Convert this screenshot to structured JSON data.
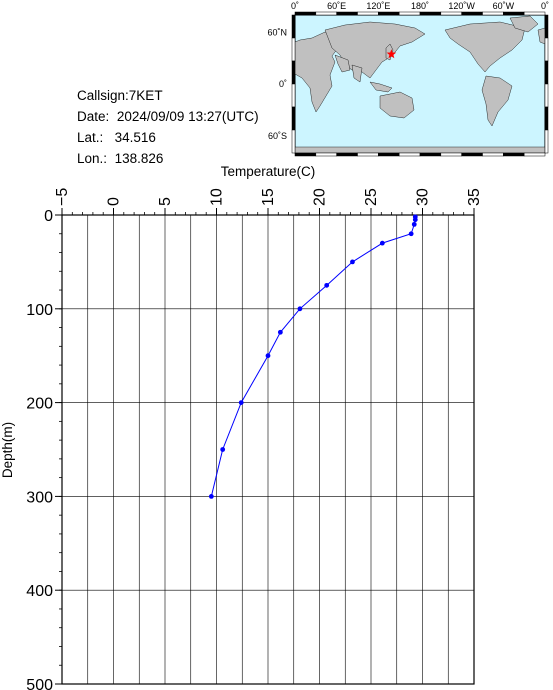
{
  "station": {
    "callsign_label": "Callsign:",
    "callsign": "7KET",
    "date_label": "Date:",
    "date": "2024/09/09 13:27(UTC)",
    "lat_label": "Lat.:",
    "lat": "34.516",
    "lon_label": "Lon.:",
    "lon": "138.826"
  },
  "map": {
    "top_labels": [
      "0˚",
      "60˚E",
      "120˚E",
      "180˚",
      "120˚W",
      "60˚W",
      "0˚"
    ],
    "right_labels": [
      "60˚N",
      "0˚",
      "60˚S"
    ],
    "ocean_color": "#ccf5ff",
    "land_color": "#c0c0c0",
    "marker_color": "#ff0000",
    "marker": {
      "lon": 138.826,
      "lat": 34.516
    }
  },
  "chart_data": {
    "type": "line",
    "xlabel": "Temperature(C)",
    "ylabel": "Depth(m)",
    "xlim": [
      -5,
      35
    ],
    "ylim": [
      0,
      500
    ],
    "y_inverted": true,
    "x_axis_position": "top",
    "x_ticks": [
      "−5",
      "0",
      "5",
      "10",
      "15",
      "20",
      "25",
      "30",
      "35"
    ],
    "x_tick_values": [
      -5,
      0,
      5,
      10,
      15,
      20,
      25,
      30,
      35
    ],
    "y_ticks": [
      "0",
      "100",
      "200",
      "300",
      "400",
      "500"
    ],
    "y_tick_values": [
      0,
      100,
      200,
      300,
      400,
      500
    ],
    "grid": true,
    "series_color": "#0000ff",
    "series": [
      {
        "temperature": [
          29.3,
          29.3,
          29.2,
          28.9,
          26.1,
          23.2,
          20.7,
          18.1,
          16.2,
          15.0,
          12.4,
          10.6,
          9.5
        ],
        "depth": [
          2,
          5,
          10,
          20,
          30,
          50,
          75,
          100,
          125,
          150,
          200,
          250,
          300
        ]
      }
    ]
  }
}
